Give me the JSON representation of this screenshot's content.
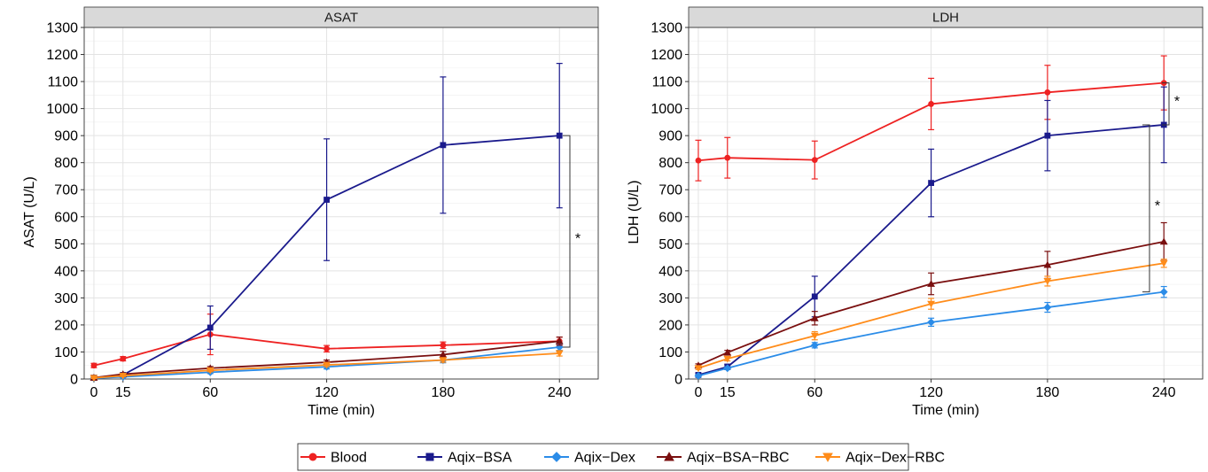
{
  "chart_data": [
    {
      "type": "line",
      "title": "ASAT",
      "xlabel": "Time (min)",
      "ylabel": "ASAT (U/L)",
      "x": [
        0,
        15,
        60,
        120,
        180,
        240
      ],
      "xticks": [
        0,
        15,
        60,
        120,
        180,
        240
      ],
      "yticks": [
        0,
        100,
        200,
        300,
        400,
        500,
        600,
        700,
        800,
        900,
        1000,
        1100,
        1200,
        1300
      ],
      "xlim": [
        -5,
        260
      ],
      "ylim": [
        0,
        1300
      ],
      "grid": true,
      "series": [
        {
          "name": "Blood",
          "color": "#ee2222",
          "marker": "circle",
          "values": [
            50,
            75,
            165,
            112,
            125,
            140
          ],
          "errors": [
            8,
            8,
            75,
            12,
            12,
            15
          ]
        },
        {
          "name": "Aqix−BSA",
          "color": "#1a1a8c",
          "marker": "square",
          "values": [
            5,
            15,
            190,
            663,
            865,
            900
          ],
          "errors": [
            3,
            5,
            80,
            225,
            252,
            267
          ]
        },
        {
          "name": "Aqix−Dex",
          "color": "#2b8ce8",
          "marker": "diamond",
          "values": [
            3,
            8,
            25,
            45,
            70,
            118
          ],
          "errors": [
            2,
            3,
            5,
            8,
            10,
            12
          ]
        },
        {
          "name": "Aqix−BSA−RBC",
          "color": "#7a0f0f",
          "marker": "triangle-up",
          "values": [
            5,
            18,
            40,
            62,
            90,
            140
          ],
          "errors": [
            3,
            4,
            6,
            8,
            12,
            15
          ]
        },
        {
          "name": "Aqix−Dex−RBC",
          "color": "#ff8c1a",
          "marker": "triangle-down",
          "values": [
            4,
            12,
            32,
            52,
            70,
            95
          ],
          "errors": [
            2,
            3,
            5,
            6,
            8,
            10
          ]
        }
      ],
      "annotations": [
        {
          "type": "significance",
          "text": "*",
          "from": 900,
          "to": 118
        }
      ]
    },
    {
      "type": "line",
      "title": "LDH",
      "xlabel": "Time (min)",
      "ylabel": "LDH (U/L)",
      "x": [
        0,
        15,
        60,
        120,
        180,
        240
      ],
      "xticks": [
        0,
        15,
        60,
        120,
        180,
        240
      ],
      "yticks": [
        0,
        100,
        200,
        300,
        400,
        500,
        600,
        700,
        800,
        900,
        1000,
        1100,
        1200,
        1300
      ],
      "xlim": [
        -5,
        260
      ],
      "ylim": [
        0,
        1300
      ],
      "grid": true,
      "series": [
        {
          "name": "Blood",
          "color": "#ee2222",
          "marker": "circle",
          "values": [
            808,
            818,
            810,
            1017,
            1060,
            1095
          ],
          "errors": [
            75,
            75,
            70,
            95,
            100,
            100
          ]
        },
        {
          "name": "Aqix−BSA",
          "color": "#1a1a8c",
          "marker": "square",
          "values": [
            15,
            45,
            305,
            725,
            900,
            940
          ],
          "errors": [
            5,
            10,
            75,
            125,
            130,
            140
          ]
        },
        {
          "name": "Aqix−Dex",
          "color": "#2b8ce8",
          "marker": "diamond",
          "values": [
            12,
            40,
            125,
            210,
            265,
            322
          ],
          "errors": [
            4,
            5,
            10,
            15,
            18,
            20
          ]
        },
        {
          "name": "Aqix−BSA−RBC",
          "color": "#7a0f0f",
          "marker": "triangle-up",
          "values": [
            50,
            98,
            225,
            352,
            422,
            508
          ],
          "errors": [
            6,
            8,
            25,
            40,
            50,
            70
          ]
        },
        {
          "name": "Aqix−Dex−RBC",
          "color": "#ff8c1a",
          "marker": "triangle-down",
          "values": [
            40,
            75,
            160,
            278,
            362,
            428
          ],
          "errors": [
            5,
            8,
            15,
            20,
            18,
            15
          ]
        }
      ],
      "annotations": [
        {
          "type": "significance",
          "text": "*",
          "from": 1095,
          "to": 940
        },
        {
          "type": "significance",
          "text": "*",
          "from": 940,
          "to": 322
        }
      ]
    }
  ],
  "legend": {
    "placement": "bottom-center",
    "entries": [
      "Blood",
      "Aqix−BSA",
      "Aqix−Dex",
      "Aqix−BSA−RBC",
      "Aqix−Dex−RBC"
    ]
  }
}
